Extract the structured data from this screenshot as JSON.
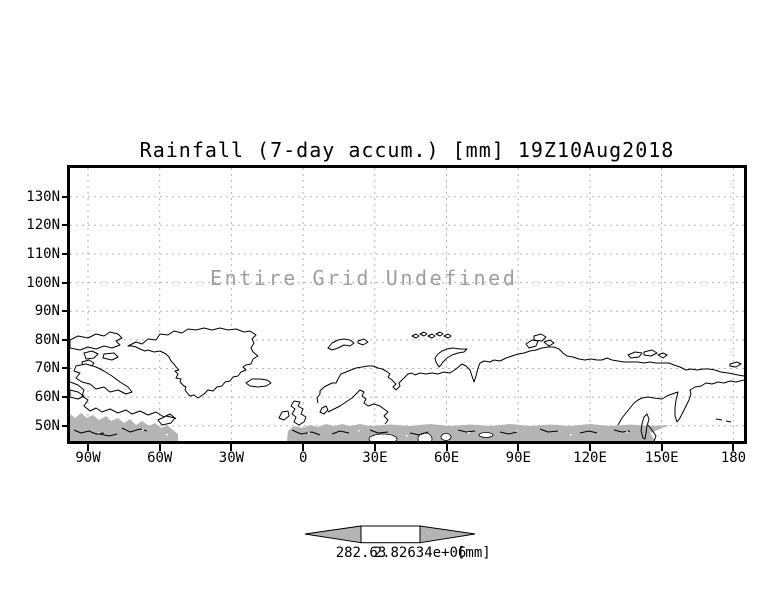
{
  "title": "Rainfall (7-day accum.) [mm] 19Z10Aug2018",
  "plot": {
    "undefined_text": "Entire Grid Undefined",
    "y_axis": {
      "ticks": [
        "130N",
        "120N",
        "110N",
        "100N",
        "90N",
        "80N",
        "70N",
        "60N",
        "50N"
      ]
    },
    "x_axis": {
      "ticks": [
        "90W",
        "60W",
        "30W",
        "0",
        "30E",
        "60E",
        "90E",
        "120E",
        "150E",
        "180"
      ]
    }
  },
  "colorbar": {
    "left_label": "282.63",
    "right_label": "2.82634e+06",
    "units": "[mm]"
  },
  "colors": {
    "coastline": "#000000",
    "gridline": "#b3b3b3",
    "land_shade": "#b4b4b4",
    "annotation_gray": "#9e9e9e",
    "colorbar_arrow_fill": "#b4b4b4",
    "colorbar_box_fill": "#ffffff"
  },
  "chart_data": {
    "type": "map",
    "title": "Rainfall (7-day accum.) [mm] 19Z10Aug2018",
    "annotation": "Entire Grid Undefined",
    "x_tick_labels": [
      "90W",
      "60W",
      "30W",
      "0",
      "30E",
      "60E",
      "90E",
      "120E",
      "150E",
      "180"
    ],
    "y_tick_labels": [
      "130N",
      "120N",
      "110N",
      "100N",
      "90N",
      "80N",
      "70N",
      "60N",
      "50N"
    ],
    "grid": "dashed",
    "series": [],
    "colorbar_ticks": [
      "282.63",
      "2.82634e+06"
    ],
    "colorbar_units": "[mm]",
    "notes": "Entire data grid undefined; only basemap coastlines, gray shaded band along southern edge, and empty colorbar arrow are drawn."
  }
}
